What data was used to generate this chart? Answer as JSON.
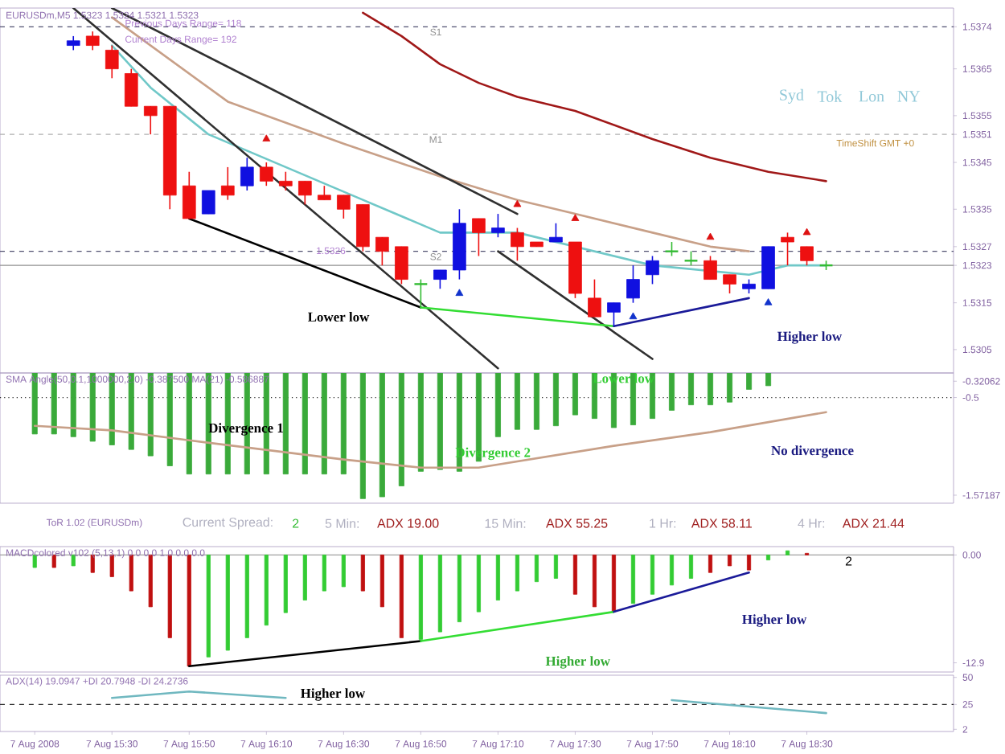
{
  "chart_data": [
    {
      "type": "candlestick",
      "title": "EURUSDm,M5  1.5323 1.5324 1.5321 1.5323",
      "tick_labels": "y",
      "x": [
        "2008-08-07T15:20",
        "2008-08-07T15:25",
        "2008-08-07T15:30",
        "2008-08-07T15:35",
        "2008-08-07T15:40",
        "2008-08-07T15:45",
        "2008-08-07T15:50",
        "2008-08-07T15:55",
        "2008-08-07T16:00",
        "2008-08-07T16:05",
        "2008-08-07T16:10",
        "2008-08-07T16:15",
        "2008-08-07T16:20",
        "2008-08-07T16:25",
        "2008-08-07T16:30",
        "2008-08-07T16:35",
        "2008-08-07T16:40",
        "2008-08-07T16:45",
        "2008-08-07T16:50",
        "2008-08-07T16:55",
        "2008-08-07T17:00",
        "2008-08-07T17:05",
        "2008-08-07T17:10",
        "2008-08-07T17:15",
        "2008-08-07T17:20",
        "2008-08-07T17:25",
        "2008-08-07T17:30",
        "2008-08-07T17:35",
        "2008-08-07T17:40",
        "2008-08-07T17:45",
        "2008-08-07T17:50",
        "2008-08-07T17:55",
        "2008-08-07T18:00",
        "2008-08-07T18:05",
        "2008-08-07T18:10",
        "2008-08-07T18:15",
        "2008-08-07T18:20",
        "2008-08-07T18:25",
        "2008-08-07T18:30",
        "2008-08-07T18:35"
      ],
      "xlim": [
        "2008-08-07T15:01",
        "2008-08-07T19:08"
      ],
      "ohlc": [
        [
          1.537,
          1.5372,
          1.5369,
          1.5371
        ],
        [
          1.5372,
          1.5373,
          1.5369,
          1.537
        ],
        [
          1.5369,
          1.537,
          1.5363,
          1.5365
        ],
        [
          1.5364,
          1.5365,
          1.5357,
          1.5357
        ],
        [
          1.5357,
          1.5357,
          1.5351,
          1.5355
        ],
        [
          1.5357,
          1.5357,
          1.5335,
          1.5338
        ],
        [
          1.534,
          1.5343,
          1.5333,
          1.5333
        ],
        [
          1.5334,
          1.5339,
          1.5334,
          1.5339
        ],
        [
          1.534,
          1.5344,
          1.5337,
          1.5338
        ],
        [
          1.534,
          1.5346,
          1.5339,
          1.5344
        ],
        [
          1.5344,
          1.5345,
          1.534,
          1.5341
        ],
        [
          1.5341,
          1.5343,
          1.5339,
          1.534
        ],
        [
          1.5341,
          1.5341,
          1.5336,
          1.5338
        ],
        [
          1.5338,
          1.534,
          1.5337,
          1.5337
        ],
        [
          1.5338,
          1.5338,
          1.5333,
          1.5335
        ],
        [
          1.5336,
          1.5336,
          1.5326,
          1.5327
        ],
        [
          1.5329,
          1.5329,
          1.5323,
          1.5326
        ],
        [
          1.5327,
          1.5327,
          1.5319,
          1.532
        ],
        [
          1.5319,
          1.532,
          1.5314,
          1.5319
        ],
        [
          1.532,
          1.5322,
          1.5318,
          1.5322
        ],
        [
          1.5322,
          1.5335,
          1.532,
          1.5332
        ],
        [
          1.5333,
          1.5333,
          1.5325,
          1.533
        ],
        [
          1.533,
          1.5334,
          1.5329,
          1.5331
        ],
        [
          1.533,
          1.5331,
          1.5324,
          1.5327
        ],
        [
          1.5328,
          1.5328,
          1.5327,
          1.5327
        ],
        [
          1.5328,
          1.5332,
          1.5328,
          1.5329
        ],
        [
          1.5328,
          1.5328,
          1.5316,
          1.5317
        ],
        [
          1.5316,
          1.532,
          1.5312,
          1.5312
        ],
        [
          1.5313,
          1.5315,
          1.531,
          1.5315
        ],
        [
          1.5316,
          1.5323,
          1.5315,
          1.532
        ],
        [
          1.5321,
          1.5325,
          1.5319,
          1.5324
        ],
        [
          1.5326,
          1.5328,
          1.5325,
          1.5326
        ],
        [
          1.5324,
          1.5326,
          1.5323,
          1.5324
        ],
        [
          1.5324,
          1.5325,
          1.532,
          1.532
        ],
        [
          1.5321,
          1.5321,
          1.5317,
          1.5319
        ],
        [
          1.5318,
          1.532,
          1.5317,
          1.5319
        ],
        [
          1.5318,
          1.5327,
          1.5318,
          1.5327
        ],
        [
          1.5329,
          1.533,
          1.5323,
          1.5328
        ],
        [
          1.5327,
          1.5327,
          1.5323,
          1.5324
        ],
        [
          1.5323,
          1.5324,
          1.5322,
          1.5323
        ]
      ],
      "colors": [
        "#1010e0",
        "#ee1010",
        "#ee1010",
        "#ee1010",
        "#ee1010",
        "#ee1010",
        "#ee1010",
        "#1010e0",
        "#ee1010",
        "#1010e0",
        "#ee1010",
        "#ee1010",
        "#ee1010",
        "#ee1010",
        "#ee1010",
        "#ee1010",
        "#ee1010",
        "#ee1010",
        "#33bb33",
        "#1010e0",
        "#1010e0",
        "#ee1010",
        "#1010e0",
        "#ee1010",
        "#ee1010",
        "#1010e0",
        "#ee1010",
        "#ee1010",
        "#1010e0",
        "#1010e0",
        "#1010e0",
        "#33bb33",
        "#33bb33",
        "#ee1010",
        "#ee1010",
        "#1010e0",
        "#1010e0",
        "#ee1010",
        "#ee1010",
        "#33bb33"
      ],
      "series": [
        {
          "type": "line",
          "color": "#a01818",
          "x": [
            "2008-08-07T16:35",
            "2008-08-07T16:45",
            "2008-08-07T16:55",
            "2008-08-07T17:05",
            "2008-08-07T17:15",
            "2008-08-07T17:30",
            "2008-08-07T17:50",
            "2008-08-07T18:05",
            "2008-08-07T18:20",
            "2008-08-07T18:35"
          ],
          "values": [
            1.5377,
            1.5372,
            1.5366,
            1.5362,
            1.5359,
            1.5356,
            1.535,
            1.5346,
            1.5343,
            1.5341
          ]
        },
        {
          "type": "line",
          "color": "#c8a088",
          "x": [
            "2008-08-07T15:30",
            "2008-08-07T15:45",
            "2008-08-07T16:00",
            "2008-08-07T16:30",
            "2008-08-07T16:55",
            "2008-08-07T17:15",
            "2008-08-07T17:30",
            "2008-08-07T17:50",
            "2008-08-07T18:05",
            "2008-08-07T18:15"
          ],
          "values": [
            1.5376,
            1.5367,
            1.5358,
            1.5349,
            1.5342,
            1.5337,
            1.5334,
            1.533,
            1.5327,
            1.5326
          ]
        },
        {
          "type": "line",
          "color": "#70c8c8",
          "x": [
            "2008-08-07T15:30",
            "2008-08-07T15:40",
            "2008-08-07T15:55",
            "2008-08-07T16:15",
            "2008-08-07T16:35",
            "2008-08-07T16:55",
            "2008-08-07T17:15",
            "2008-08-07T17:50",
            "2008-08-07T18:15",
            "2008-08-07T18:25",
            "2008-08-07T18:35"
          ],
          "values": [
            1.537,
            1.5361,
            1.5351,
            1.5344,
            1.5337,
            1.533,
            1.533,
            1.5323,
            1.5321,
            1.5323,
            1.5323
          ]
        },
        {
          "type": "line",
          "color": "#303030",
          "x": [
            "2008-08-07T15:20",
            "2008-08-07T17:10"
          ],
          "values": [
            1.5378,
            1.5301
          ]
        },
        {
          "type": "line",
          "color": "#303030",
          "x": [
            "2008-08-07T15:30",
            "2008-08-07T17:15"
          ],
          "values": [
            1.5378,
            1.5334
          ]
        },
        {
          "type": "line",
          "color": "#303030",
          "x": [
            "2008-08-07T17:10",
            "2008-08-07T17:50"
          ],
          "values": [
            1.5326,
            1.5303
          ]
        },
        {
          "type": "line",
          "color": "#000000",
          "x": [
            "2008-08-07T15:50",
            "2008-08-07T16:50"
          ],
          "values": [
            1.5333,
            1.5314
          ]
        },
        {
          "type": "line",
          "color": "#33dd33",
          "x": [
            "2008-08-07T16:50",
            "2008-08-07T17:40"
          ],
          "values": [
            1.5314,
            1.531
          ]
        },
        {
          "type": "line",
          "color": "#1a1a99",
          "x": [
            "2008-08-07T17:40",
            "2008-08-07T18:15"
          ],
          "values": [
            1.531,
            1.5316
          ]
        },
        {
          "type": "scatter",
          "marker": "triangle",
          "color": "#dd1111",
          "x": [
            "2008-08-07T16:10",
            "2008-08-07T17:15",
            "2008-08-07T17:30",
            "2008-08-07T18:05",
            "2008-08-07T18:30"
          ],
          "values": [
            1.535,
            1.5336,
            1.5333,
            1.5329,
            1.533
          ]
        },
        {
          "type": "scatter",
          "marker": "triangle",
          "color": "#1133cc",
          "x": [
            "2008-08-07T17:00",
            "2008-08-07T17:45",
            "2008-08-07T18:20"
          ],
          "values": [
            1.5317,
            1.5312,
            1.5315
          ]
        }
      ],
      "ylim": [
        1.53,
        1.5378
      ],
      "yticks": [
        1.5305,
        1.5315,
        1.5323,
        1.5327,
        1.5335,
        1.5345,
        1.5351,
        1.5355,
        1.5365,
        1.5374
      ],
      "ref_lines": [
        {
          "axis": "y",
          "value": 1.5374,
          "label": "S1",
          "line_style": "dashed",
          "color": "#505070"
        },
        {
          "axis": "y",
          "value": 1.5351,
          "label": "M1",
          "line_style": "dashed",
          "color": "#b0b0b0"
        },
        {
          "axis": "y",
          "value": 1.5326,
          "label": "S2",
          "line_style": "dashed",
          "color": "#505070"
        },
        {
          "axis": "y",
          "value": 1.5323,
          "line_style": "solid",
          "color": "#909090"
        }
      ],
      "annotations": [
        "Previous Days Range= 118",
        "Current Days Range= 192",
        "Syd",
        "Tok",
        "Lon",
        "NY",
        "TimeShift GMT +0",
        "1.5326",
        "Lower low",
        "Higher low"
      ]
    },
    {
      "type": "bar",
      "title": "SMA Angle(50,0.1,1000000,2.0) -0.387500 MA(21) -0.586887",
      "tick_labels": "y",
      "x": [
        "2008-08-07T15:10",
        "2008-08-07T15:15",
        "2008-08-07T15:20",
        "2008-08-07T15:25",
        "2008-08-07T15:30",
        "2008-08-07T15:35",
        "2008-08-07T15:40",
        "2008-08-07T15:45",
        "2008-08-07T15:50",
        "2008-08-07T15:55",
        "2008-08-07T16:00",
        "2008-08-07T16:05",
        "2008-08-07T16:10",
        "2008-08-07T16:15",
        "2008-08-07T16:20",
        "2008-08-07T16:25",
        "2008-08-07T16:30",
        "2008-08-07T16:35",
        "2008-08-07T16:40",
        "2008-08-07T16:45",
        "2008-08-07T16:50",
        "2008-08-07T16:55",
        "2008-08-07T17:00",
        "2008-08-07T17:05",
        "2008-08-07T17:10",
        "2008-08-07T17:15",
        "2008-08-07T17:20",
        "2008-08-07T17:25",
        "2008-08-07T17:30",
        "2008-08-07T17:35",
        "2008-08-07T17:40",
        "2008-08-07T17:45",
        "2008-08-07T17:50",
        "2008-08-07T17:55",
        "2008-08-07T18:00",
        "2008-08-07T18:05",
        "2008-08-07T18:10",
        "2008-08-07T18:15",
        "2008-08-07T18:20"
      ],
      "xlim": [
        "2008-08-07T15:01",
        "2008-08-07T19:08"
      ],
      "series": [
        {
          "type": "bar",
          "color": "#3aaa3a",
          "values": [
            -0.9,
            -0.9,
            -0.93,
            -0.98,
            -1.02,
            -1.07,
            -1.14,
            -1.25,
            -1.34,
            -1.34,
            -1.34,
            -1.34,
            -1.34,
            -1.34,
            -1.34,
            -1.34,
            -1.34,
            -1.61,
            -1.59,
            -1.47,
            -1.31,
            -1.29,
            -1.31,
            -1.2,
            -0.93,
            -0.85,
            -0.85,
            -0.81,
            -0.69,
            -0.73,
            -0.83,
            -0.8,
            -0.73,
            -0.64,
            -0.58,
            -0.58,
            -0.55,
            -0.41,
            -0.37
          ]
        },
        {
          "type": "line",
          "color": "#c8a088",
          "x": [
            "2008-08-07T15:10",
            "2008-08-07T15:30",
            "2008-08-07T15:50",
            "2008-08-07T16:30",
            "2008-08-07T16:50",
            "2008-08-07T17:05",
            "2008-08-07T17:40",
            "2008-08-07T18:05",
            "2008-08-07T18:35"
          ],
          "values": [
            -0.81,
            -0.86,
            -0.97,
            -1.18,
            -1.27,
            -1.27,
            -1.03,
            -0.88,
            -0.66
          ]
        }
      ],
      "ylim": [
        -1.66,
        -0.23
      ],
      "yticks": [
        -0.32062,
        -0.5,
        -1.57187
      ],
      "ref_lines": [
        {
          "axis": "y",
          "value": -0.5,
          "line_style": "dotted",
          "color": "#303030"
        }
      ],
      "annotations": [
        "Divergence 1",
        "Lower low",
        "Divergence 2",
        "No divergence"
      ]
    },
    {
      "type": "other",
      "annotations": [
        "ToR 1.02 (EURUSDm)",
        "Current Spread:",
        "2",
        "5 Min:",
        "ADX 19.00",
        "15 Min:",
        "ADX 55.25",
        "1 Hr:",
        "ADX 58.11",
        "4 Hr:",
        "ADX 21.44"
      ]
    },
    {
      "type": "bar",
      "title": "MACDcolored v102 (5,13,1) 0.0 0.0 1.0 0.0 0.0",
      "tick_labels": "y",
      "x": [
        "2008-08-07T15:10",
        "2008-08-07T15:15",
        "2008-08-07T15:20",
        "2008-08-07T15:25",
        "2008-08-07T15:30",
        "2008-08-07T15:35",
        "2008-08-07T15:40",
        "2008-08-07T15:45",
        "2008-08-07T15:50",
        "2008-08-07T15:55",
        "2008-08-07T16:00",
        "2008-08-07T16:05",
        "2008-08-07T16:10",
        "2008-08-07T16:15",
        "2008-08-07T16:20",
        "2008-08-07T16:25",
        "2008-08-07T16:30",
        "2008-08-07T16:35",
        "2008-08-07T16:40",
        "2008-08-07T16:45",
        "2008-08-07T16:50",
        "2008-08-07T16:55",
        "2008-08-07T17:00",
        "2008-08-07T17:05",
        "2008-08-07T17:10",
        "2008-08-07T17:15",
        "2008-08-07T17:20",
        "2008-08-07T17:25",
        "2008-08-07T17:30",
        "2008-08-07T17:35",
        "2008-08-07T17:40",
        "2008-08-07T17:45",
        "2008-08-07T17:50",
        "2008-08-07T17:55",
        "2008-08-07T18:00",
        "2008-08-07T18:05",
        "2008-08-07T18:10",
        "2008-08-07T18:15",
        "2008-08-07T18:20",
        "2008-08-07T18:25",
        "2008-08-07T18:30"
      ],
      "xlim": [
        "2008-08-07T15:01",
        "2008-08-07T19:08"
      ],
      "series": [
        {
          "type": "bar",
          "colors": [
            "#33cc33",
            "#c01010",
            "#33cc33",
            "#c01010",
            "#c01010",
            "#c01010",
            "#c01010",
            "#c01010",
            "#c01010",
            "#33cc33",
            "#33cc33",
            "#33cc33",
            "#33cc33",
            "#33cc33",
            "#33cc33",
            "#33cc33",
            "#33cc33",
            "#c01010",
            "#c01010",
            "#c01010",
            "#33cc33",
            "#33cc33",
            "#33cc33",
            "#33cc33",
            "#33cc33",
            "#33cc33",
            "#33cc33",
            "#33cc33",
            "#c01010",
            "#c01010",
            "#c01010",
            "#33cc33",
            "#33cc33",
            "#33cc33",
            "#33cc33",
            "#c01010",
            "#c01010",
            "#c01010",
            "#33cc33",
            "#33cc33",
            "#c01010"
          ],
          "values": [
            -1.5,
            -1.5,
            -1.3,
            -2.1,
            -2.6,
            -4.3,
            -6.2,
            -9.9,
            -13.3,
            -12.2,
            -11.4,
            -9.9,
            -8.4,
            -6.9,
            -5.4,
            -4.3,
            -3.8,
            -4.3,
            -6.2,
            -9.9,
            -10.1,
            -9.2,
            -8.0,
            -6.8,
            -5.4,
            -4.3,
            -3.2,
            -2.8,
            -4.7,
            -6.2,
            -6.8,
            -5.8,
            -4.7,
            -3.6,
            -2.8,
            -2.1,
            -1.3,
            -1.8,
            -0.6,
            0.5,
            0.2
          ]
        },
        {
          "type": "line",
          "color": "#000000",
          "x": [
            "2008-08-07T15:50",
            "2008-08-07T16:50"
          ],
          "values": [
            -13.3,
            -10.3
          ]
        },
        {
          "type": "line",
          "color": "#33dd33",
          "x": [
            "2008-08-07T16:50",
            "2008-08-07T17:40"
          ],
          "values": [
            -10.3,
            -6.8
          ]
        },
        {
          "type": "line",
          "color": "#1a1a99",
          "x": [
            "2008-08-07T17:40",
            "2008-08-07T18:15"
          ],
          "values": [
            -6.8,
            -2.1
          ]
        }
      ],
      "ylim": [
        -14,
        1
      ],
      "yticks": [
        {
          "value": 0,
          "label": "0.00"
        },
        -12.9
      ],
      "ref_lines": [
        {
          "axis": "y",
          "value": 0,
          "line_style": "solid",
          "color": "#a0a0a0"
        }
      ],
      "annotations": [
        "2",
        "Higher low",
        "Higher low"
      ]
    },
    {
      "type": "line",
      "title": "ADX(14) 19.0947 +DI 20.7948 -DI 24.2736",
      "xlim": [
        "2008-08-07T15:01",
        "2008-08-07T19:08"
      ],
      "xticks": [
        {
          "value": "2008-08-07T15:10",
          "label": "7 Aug 2008"
        },
        {
          "value": "2008-08-07T15:30",
          "label": "7 Aug 15:30"
        },
        {
          "value": "2008-08-07T15:50",
          "label": "7 Aug 15:50"
        },
        {
          "value": "2008-08-07T16:10",
          "label": "7 Aug 16:10"
        },
        {
          "value": "2008-08-07T16:30",
          "label": "7 Aug 16:30"
        },
        {
          "value": "2008-08-07T16:50",
          "label": "7 Aug 16:50"
        },
        {
          "value": "2008-08-07T17:10",
          "label": "7 Aug 17:10"
        },
        {
          "value": "2008-08-07T17:30",
          "label": "7 Aug 17:30"
        },
        {
          "value": "2008-08-07T17:50",
          "label": "7 Aug 17:50"
        },
        {
          "value": "2008-08-07T18:10",
          "label": "7 Aug 18:10"
        },
        {
          "value": "2008-08-07T18:30",
          "label": "7 Aug 18:30"
        }
      ],
      "series": [
        {
          "color": "#70b8c0",
          "x": [
            "2008-08-07T15:30",
            "2008-08-07T15:50",
            "2008-08-07T16:15"
          ],
          "values": [
            31,
            37,
            31
          ]
        },
        {
          "color": "#70b8c0",
          "x": [
            "2008-08-07T17:55",
            "2008-08-07T18:35"
          ],
          "values": [
            29,
            17
          ]
        }
      ],
      "ylim": [
        0,
        52
      ],
      "yticks": [
        2,
        25,
        50
      ],
      "ref_lines": [
        {
          "axis": "y",
          "value": 25,
          "line_style": "dashed",
          "color": "#303030"
        }
      ],
      "annotations": [
        "Higher low"
      ]
    }
  ]
}
